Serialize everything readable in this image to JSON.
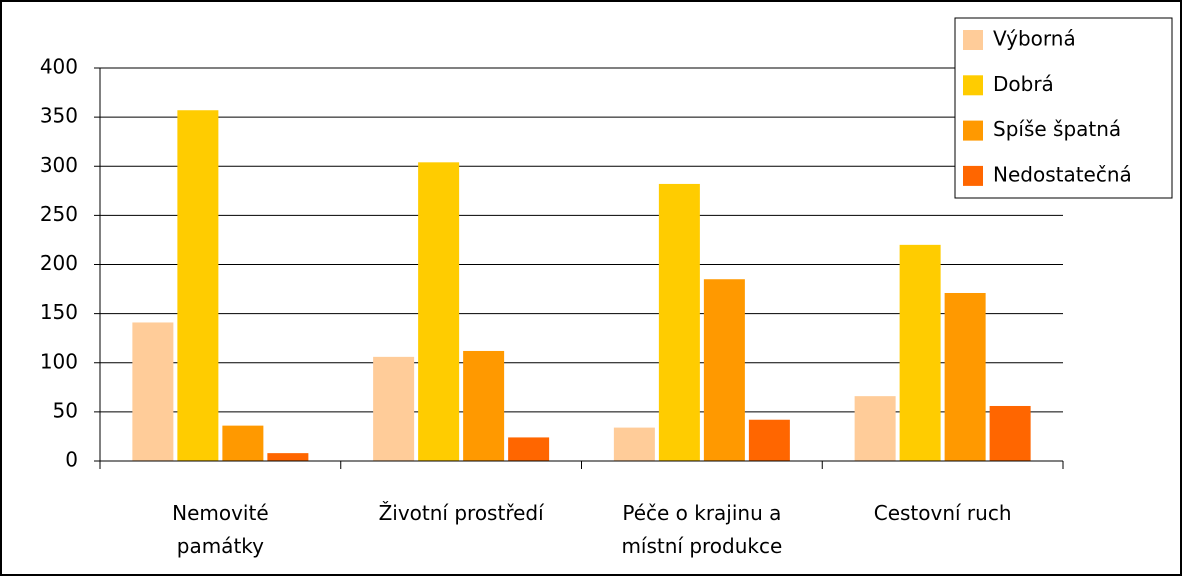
{
  "chart_data": {
    "type": "bar",
    "categories": [
      "Nemovité\npamátky",
      "Životní prostředí",
      "Péče o krajinu a\nmístní produkce",
      "Cestovní ruch"
    ],
    "series": [
      {
        "name": "Výborná",
        "color": "#FFCC99",
        "values": [
          141,
          106,
          34,
          66
        ]
      },
      {
        "name": "Dobrá",
        "color": "#FFCC00",
        "values": [
          357,
          304,
          282,
          220
        ]
      },
      {
        "name": "Spíše špatná",
        "color": "#FF9900",
        "values": [
          36,
          112,
          185,
          171
        ]
      },
      {
        "name": "Nedostatečná",
        "color": "#FF6600",
        "values": [
          8,
          24,
          42,
          56
        ]
      }
    ],
    "ylim": [
      0,
      400
    ],
    "yticks": [
      0,
      50,
      100,
      150,
      200,
      250,
      300,
      350,
      400
    ],
    "grid": true,
    "legend": "top-right"
  }
}
